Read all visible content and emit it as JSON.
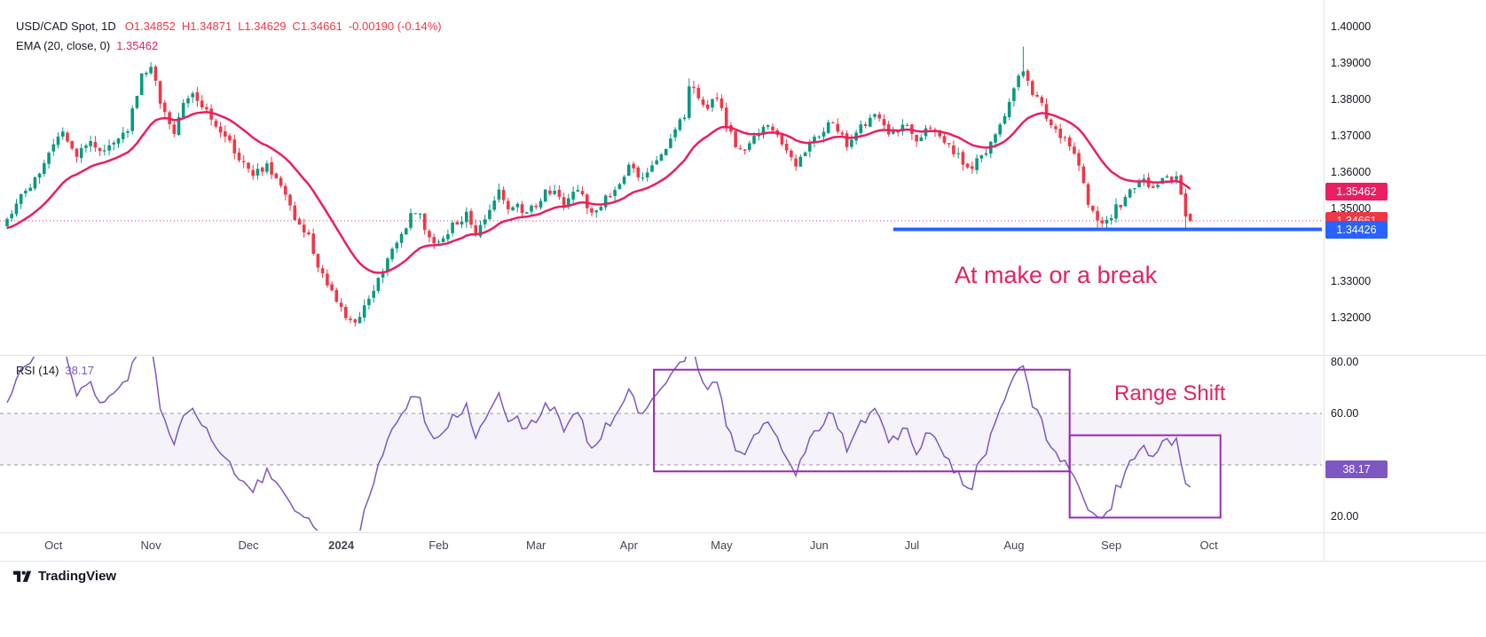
{
  "colors": {
    "up": "#089981",
    "down": "#f23645",
    "ema": "#e91e63",
    "rsi": "#7e57c2",
    "box": "#9c27b0",
    "support": "#2962ff",
    "band_fill": "rgba(126,87,194,0.08)",
    "band_line": "#9598a1",
    "annotation": "#e0245e"
  },
  "legend_main": {
    "title": "USD/CAD Spot, 1D",
    "ohlc": [
      "O1.34852",
      "H1.34871",
      "L1.34629",
      "C1.34661"
    ],
    "change": "-0.00190 (-0.14%)"
  },
  "legend_ema": {
    "label": "EMA (20, close, 0)",
    "value": "1.35462"
  },
  "legend_rsi": {
    "label": "RSI (14)",
    "value": "38.17"
  },
  "annotations": {
    "price_note": "At make or a break",
    "rsi_note": "Range Shift"
  },
  "price_axis": {
    "labels": [
      {
        "text": "1.40000",
        "price": 1.4
      },
      {
        "text": "1.39000",
        "price": 1.39
      },
      {
        "text": "1.38000",
        "price": 1.38
      },
      {
        "text": "1.37000",
        "price": 1.37
      },
      {
        "text": "1.36000",
        "price": 1.36
      },
      {
        "text": "1.35000",
        "price": 1.35
      },
      {
        "text": "1.33000",
        "price": 1.33
      },
      {
        "text": "1.32000",
        "price": 1.32
      }
    ],
    "badges": [
      {
        "text": "1.35462",
        "price": 1.35462,
        "color": "#e91e63",
        "name": "ema-value-badge"
      },
      {
        "text": "1.34661",
        "price": 1.34661,
        "color": "#f23645",
        "name": "last-price-badge"
      },
      {
        "text": "1.34426",
        "price": 1.34426,
        "color": "#2962ff",
        "name": "support-price-badge"
      }
    ]
  },
  "rsi_axis": {
    "labels": [
      {
        "text": "80.00",
        "value": 80
      },
      {
        "text": "60.00",
        "value": 60
      },
      {
        "text": "40.00",
        "value": 40
      },
      {
        "text": "20.00",
        "value": 20
      }
    ],
    "badge": {
      "text": "38.17",
      "value": 38.17,
      "color": "#7e57c2"
    }
  },
  "time_axis": {
    "labels": [
      {
        "text": "Oct",
        "day": 10
      },
      {
        "text": "Nov",
        "day": 31
      },
      {
        "text": "Dec",
        "day": 52
      },
      {
        "text": "2024",
        "day": 72,
        "bold": true
      },
      {
        "text": "Feb",
        "day": 93
      },
      {
        "text": "Mar",
        "day": 114
      },
      {
        "text": "Apr",
        "day": 134
      },
      {
        "text": "May",
        "day": 154
      },
      {
        "text": "Jun",
        "day": 175
      },
      {
        "text": "Jul",
        "day": 195
      },
      {
        "text": "Aug",
        "day": 217
      },
      {
        "text": "Sep",
        "day": 238
      },
      {
        "text": "Oct",
        "day": 259
      }
    ]
  },
  "footer": {
    "brand": "TradingView"
  },
  "chart_data": [
    {
      "type": "candlestick",
      "title": "USD/CAD Spot, 1D",
      "ylim": [
        1.3139,
        1.4044
      ],
      "last_bar": {
        "open": 1.34852,
        "high": 1.34871,
        "low": 1.34629,
        "close": 1.34661,
        "change": -0.0019,
        "change_pct": -0.14
      },
      "ema": {
        "period": 20,
        "source": "close",
        "offset": 0,
        "last": 1.35462
      },
      "close_anchors": [
        [
          -20,
          1.343
        ],
        [
          0,
          1.346
        ],
        [
          3,
          1.353
        ],
        [
          6,
          1.358
        ],
        [
          9,
          1.365
        ],
        [
          12,
          1.3705
        ],
        [
          15,
          1.364
        ],
        [
          18,
          1.369
        ],
        [
          21,
          1.3655
        ],
        [
          24,
          1.368
        ],
        [
          26,
          1.372
        ],
        [
          29,
          1.3865
        ],
        [
          31,
          1.388
        ],
        [
          33,
          1.38
        ],
        [
          36,
          1.3705
        ],
        [
          38,
          1.378
        ],
        [
          40,
          1.3815
        ],
        [
          43,
          1.376
        ],
        [
          47,
          1.37
        ],
        [
          50,
          1.364
        ],
        [
          53,
          1.3595
        ],
        [
          56,
          1.362
        ],
        [
          59,
          1.356
        ],
        [
          61,
          1.35
        ],
        [
          63,
          1.3455
        ],
        [
          65,
          1.342
        ],
        [
          67,
          1.335
        ],
        [
          69,
          1.329
        ],
        [
          71,
          1.324
        ],
        [
          73,
          1.32
        ],
        [
          75,
          1.3185
        ],
        [
          77,
          1.323
        ],
        [
          80,
          1.331
        ],
        [
          83,
          1.339
        ],
        [
          86,
          1.3455
        ],
        [
          88,
          1.3495
        ],
        [
          91,
          1.343
        ],
        [
          93,
          1.34
        ],
        [
          96,
          1.345
        ],
        [
          99,
          1.348
        ],
        [
          101,
          1.344
        ],
        [
          104,
          1.35
        ],
        [
          106,
          1.3545
        ],
        [
          108,
          1.349
        ],
        [
          110,
          1.352
        ],
        [
          112,
          1.348
        ],
        [
          115,
          1.353
        ],
        [
          118,
          1.356
        ],
        [
          120,
          1.352
        ],
        [
          123,
          1.356
        ],
        [
          126,
          1.348
        ],
        [
          129,
          1.353
        ],
        [
          132,
          1.357
        ],
        [
          134,
          1.361
        ],
        [
          137,
          1.358
        ],
        [
          140,
          1.364
        ],
        [
          143,
          1.369
        ],
        [
          146,
          1.376
        ],
        [
          147,
          1.384
        ],
        [
          150,
          1.378
        ],
        [
          153,
          1.3795
        ],
        [
          156,
          1.37
        ],
        [
          158,
          1.366
        ],
        [
          161,
          1.369
        ],
        [
          164,
          1.373
        ],
        [
          167,
          1.368
        ],
        [
          170,
          1.362
        ],
        [
          172,
          1.366
        ],
        [
          175,
          1.37
        ],
        [
          178,
          1.374
        ],
        [
          181,
          1.368
        ],
        [
          184,
          1.372
        ],
        [
          187,
          1.377
        ],
        [
          190,
          1.37
        ],
        [
          193,
          1.373
        ],
        [
          196,
          1.369
        ],
        [
          199,
          1.372
        ],
        [
          202,
          1.368
        ],
        [
          205,
          1.364
        ],
        [
          208,
          1.361
        ],
        [
          211,
          1.366
        ],
        [
          213,
          1.37
        ],
        [
          215,
          1.376
        ],
        [
          217,
          1.383
        ],
        [
          219,
          1.389
        ],
        [
          220,
          1.384
        ],
        [
          222,
          1.38
        ],
        [
          224,
          1.376
        ],
        [
          226,
          1.372
        ],
        [
          228,
          1.369
        ],
        [
          230,
          1.364
        ],
        [
          232,
          1.357
        ],
        [
          233,
          1.352
        ],
        [
          235,
          1.3455
        ],
        [
          237,
          1.347
        ],
        [
          239,
          1.35
        ],
        [
          241,
          1.353
        ],
        [
          243,
          1.356
        ],
        [
          245,
          1.358
        ],
        [
          247,
          1.356
        ],
        [
          249,
          1.359
        ],
        [
          251,
          1.358
        ],
        [
          252,
          1.36
        ],
        [
          253,
          1.355
        ],
        [
          254,
          1.349
        ],
        [
          255,
          1.34661
        ]
      ],
      "bar_overrides": {
        "147": {
          "high": 1.3858
        },
        "219": {
          "high": 1.3945
        },
        "235": {
          "low": 1.3443
        },
        "254": {
          "low": 1.3441
        },
        "255": {
          "open": 1.34852,
          "high": 1.34871,
          "low": 1.34629,
          "close": 1.34661
        }
      },
      "support_line": {
        "price": 1.34426,
        "from_day": 191
      },
      "last_price_line": {
        "price": 1.34661
      }
    },
    {
      "type": "line",
      "name": "RSI",
      "period": 14,
      "last": 38.17,
      "ylim": [
        14.5,
        82
      ],
      "band": [
        40,
        60
      ],
      "boxes": [
        {
          "from_day": 139.4,
          "to_day": 229,
          "top": 77,
          "bottom": 37.5
        },
        {
          "from_day": 229,
          "to_day": 261.5,
          "top": 51.5,
          "bottom": 19.5
        }
      ]
    }
  ]
}
